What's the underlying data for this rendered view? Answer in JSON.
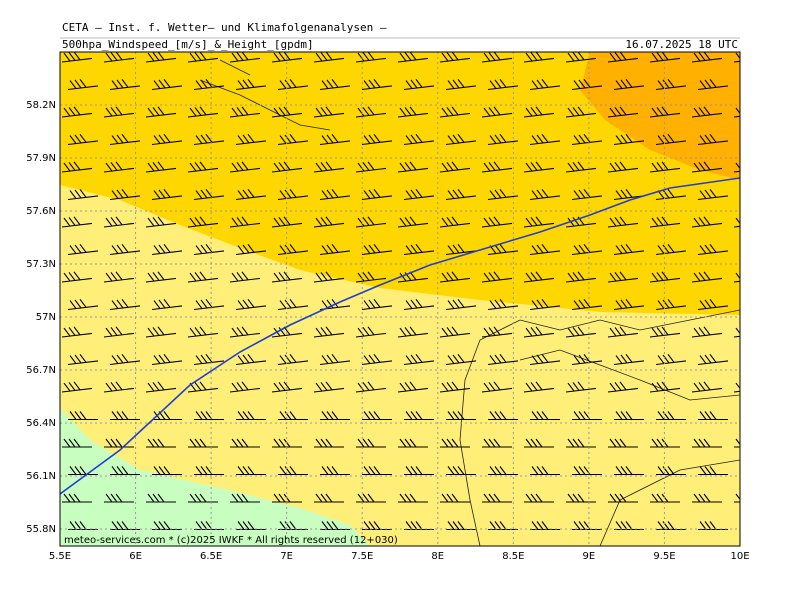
{
  "header": {
    "title": "CETA — Inst. f. Wetter— und Klimafolgenanalysen —",
    "subtitle": "500hpa_Windspeed_[m/s]_&_Height_[gpdm]",
    "date": "16.07.2025 18 UTC"
  },
  "map": {
    "lat_ticks": [
      {
        "value": 58.2,
        "label": "58.2N"
      },
      {
        "value": 57.9,
        "label": "57.9N"
      },
      {
        "value": 57.6,
        "label": "57.6N"
      },
      {
        "value": 57.3,
        "label": "57.3N"
      },
      {
        "value": 57,
        "label": "57N"
      },
      {
        "value": 56.7,
        "label": "56.7N"
      },
      {
        "value": 56.4,
        "label": "56.4N"
      },
      {
        "value": 56.1,
        "label": "56.1N"
      },
      {
        "value": 55.8,
        "label": "55.8N"
      }
    ],
    "lon_ticks": [
      {
        "value": 5.5,
        "label": "5.5E"
      },
      {
        "value": 6,
        "label": "6E"
      },
      {
        "value": 6.5,
        "label": "6.5E"
      },
      {
        "value": 7,
        "label": "7E"
      },
      {
        "value": 7.5,
        "label": "7.5E"
      },
      {
        "value": 8,
        "label": "8E"
      },
      {
        "value": 8.5,
        "label": "8.5E"
      },
      {
        "value": 9,
        "label": "9E"
      },
      {
        "value": 9.5,
        "label": "9.5E"
      },
      {
        "value": 10,
        "label": "10E"
      }
    ],
    "credit": "meteo-services.com * (c)2025 IWKF * All rights reserved (12+030)"
  }
}
